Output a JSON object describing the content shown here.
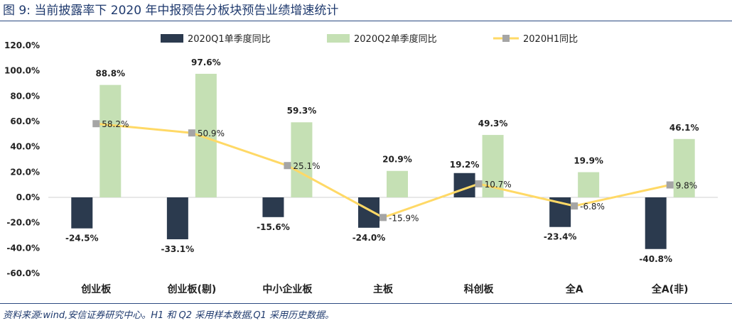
{
  "figure": {
    "title": "图 9:  当前披露率下 2020 年中报预告分板块预告业绩增速统计",
    "source": "资料来源:wind,安信证券研究中心。H1 和 Q2 采用样本数据,Q1 采用历史数据。"
  },
  "chart_data": {
    "type": "bar",
    "title": "",
    "xlabel": "",
    "ylabel": "",
    "ylim": [
      -60,
      120
    ],
    "yticks": [
      -60,
      -40,
      -20,
      0,
      20,
      40,
      60,
      80,
      100,
      120
    ],
    "ytick_labels": [
      "-60.0%",
      "-40.0%",
      "-20.0%",
      "0.0%",
      "20.0%",
      "40.0%",
      "60.0%",
      "80.0%",
      "100.0%",
      "120.0%"
    ],
    "grid": false,
    "legend": "top-center",
    "categories": [
      "创业板",
      "创业板(剔)",
      "中小企业板",
      "主板",
      "科创板",
      "全A",
      "全A(非)"
    ],
    "series": [
      {
        "name": "2020Q1单季度同比",
        "type": "bar",
        "color": "#2b3a4e",
        "values": [
          -24.5,
          -33.1,
          -15.6,
          -24.0,
          19.2,
          -23.4,
          -40.8
        ],
        "labels": [
          "-24.5%",
          "-33.1%",
          "-15.6%",
          "-24.0%",
          "19.2%",
          "-23.4%",
          "-40.8%"
        ]
      },
      {
        "name": "2020Q2单季度同比",
        "type": "bar",
        "color": "#c5e0b4",
        "values": [
          88.8,
          97.6,
          59.3,
          20.9,
          49.3,
          19.9,
          46.1
        ],
        "labels": [
          "88.8%",
          "97.6%",
          "59.3%",
          "20.9%",
          "49.3%",
          "19.9%",
          "46.1%"
        ]
      },
      {
        "name": "2020H1同比",
        "type": "line",
        "color": "#ffd966",
        "marker_color": "#a5a5a5",
        "values": [
          58.2,
          50.9,
          25.1,
          -15.9,
          10.7,
          -6.8,
          9.8
        ],
        "labels": [
          "58.2%",
          "50.9%",
          "25.1%",
          "-15.9%",
          "10.7%",
          "-6.8%",
          "9.8%"
        ]
      }
    ]
  }
}
